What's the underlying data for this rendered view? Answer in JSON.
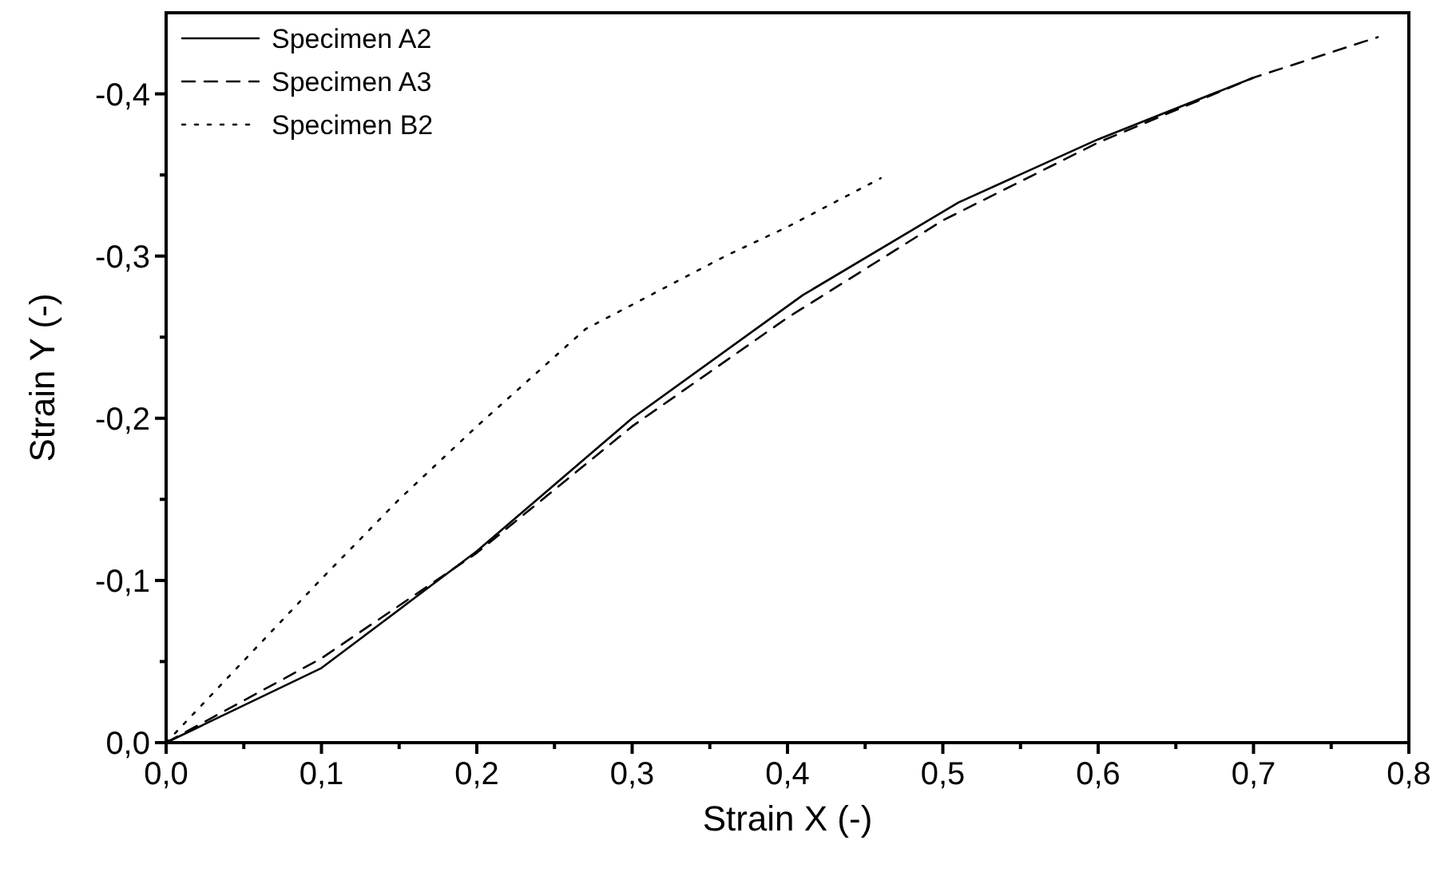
{
  "chart_data": {
    "type": "line",
    "xlabel": "Strain X (-)",
    "ylabel": "Strain Y (-)",
    "xlim": [
      0,
      0.8
    ],
    "ylim": [
      0,
      -0.45
    ],
    "xticks": [
      {
        "value": 0,
        "label": "0,0"
      },
      {
        "value": 0.05,
        "label": null
      },
      {
        "value": 0.1,
        "label": "0,1"
      },
      {
        "value": 0.15,
        "label": null
      },
      {
        "value": 0.2,
        "label": "0,2"
      },
      {
        "value": 0.25,
        "label": null
      },
      {
        "value": 0.3,
        "label": "0,3"
      },
      {
        "value": 0.35,
        "label": null
      },
      {
        "value": 0.4,
        "label": "0,4"
      },
      {
        "value": 0.45,
        "label": null
      },
      {
        "value": 0.5,
        "label": "0,5"
      },
      {
        "value": 0.55,
        "label": null
      },
      {
        "value": 0.6,
        "label": "0,6"
      },
      {
        "value": 0.65,
        "label": null
      },
      {
        "value": 0.7,
        "label": "0,7"
      },
      {
        "value": 0.75,
        "label": null
      },
      {
        "value": 0.8,
        "label": "0,8"
      }
    ],
    "yticks": [
      {
        "value": 0,
        "label": "0,0"
      },
      {
        "value": -0.05,
        "label": null
      },
      {
        "value": -0.1,
        "label": "-0,1"
      },
      {
        "value": -0.15,
        "label": null
      },
      {
        "value": -0.2,
        "label": "-0,2"
      },
      {
        "value": -0.25,
        "label": null
      },
      {
        "value": -0.3,
        "label": "-0,3"
      },
      {
        "value": -0.35,
        "label": null
      },
      {
        "value": -0.4,
        "label": "-0,4"
      }
    ],
    "grid": false,
    "legend": "top left",
    "marker": "none",
    "series": [
      {
        "name": "Specimen A2",
        "color": "#000000",
        "line_style": "solid",
        "x": [
          0,
          0.1,
          0.2,
          0.3,
          0.41,
          0.51,
          0.6,
          0.7
        ],
        "values": [
          0,
          -0.046,
          -0.118,
          -0.2,
          -0.276,
          -0.333,
          -0.372,
          -0.41
        ]
      },
      {
        "name": "Specimen A3",
        "color": "#000000",
        "line_style": "dashed",
        "x": [
          0,
          0.1,
          0.2,
          0.3,
          0.4,
          0.5,
          0.6,
          0.7,
          0.78
        ],
        "values": [
          0,
          -0.052,
          -0.117,
          -0.195,
          -0.262,
          -0.322,
          -0.37,
          -0.41,
          -0.435
        ]
      },
      {
        "name": "Specimen B2",
        "color": "#000000",
        "line_style": "dotted",
        "x": [
          0,
          0.1,
          0.15,
          0.2,
          0.27,
          0.36,
          0.4,
          0.46
        ],
        "values": [
          0,
          -0.101,
          -0.15,
          -0.195,
          -0.255,
          -0.3,
          -0.318,
          -0.348
        ]
      }
    ]
  }
}
